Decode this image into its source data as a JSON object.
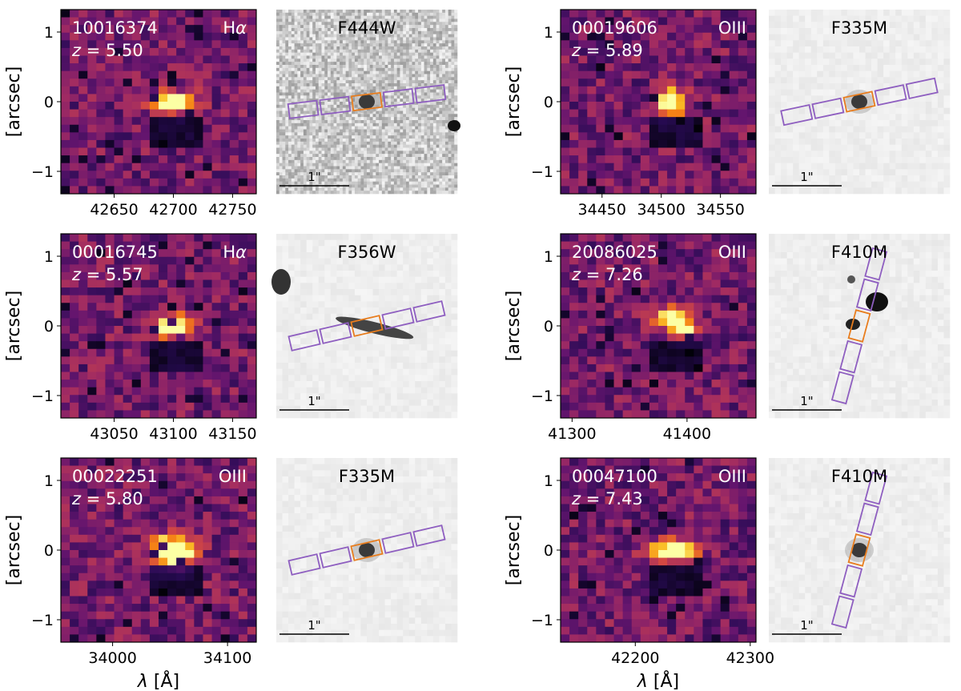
{
  "figure": {
    "ylabel": "[arcsec]",
    "xlabel_symbol": "λ",
    "xlabel_unit": " [Å]",
    "scale_label": "1\"",
    "yticks": [
      1,
      0,
      -1
    ],
    "ytick_labels": [
      "1",
      "0",
      "−1"
    ]
  },
  "panels": [
    {
      "id": "10016374",
      "line": "Hα",
      "line_base": "H",
      "line_greek": "α",
      "z": "5.50",
      "filter": "F444W",
      "xticks": [
        42650,
        42700,
        42750
      ],
      "xlim": [
        42605,
        42770
      ],
      "slit_angle_deg": -7,
      "emission": "compact-elongated"
    },
    {
      "id": "00019606",
      "line": "OIII",
      "line_base": "OIII",
      "line_greek": "",
      "z": "5.89",
      "filter": "F335M",
      "xticks": [
        34450,
        34500,
        34550
      ],
      "xlim": [
        34415,
        34580
      ],
      "slit_angle_deg": -12,
      "emission": "compact-bright"
    },
    {
      "id": "00016745",
      "line": "Hα",
      "line_base": "H",
      "line_greek": "α",
      "z": "5.57",
      "filter": "F356W",
      "xticks": [
        43050,
        43100,
        43150
      ],
      "xlim": [
        43005,
        43170
      ],
      "slit_angle_deg": -13,
      "emission": "tilted"
    },
    {
      "id": "20086025",
      "line": "OIII",
      "line_base": "OIII",
      "line_greek": "",
      "z": "7.26",
      "filter": "F410M",
      "xticks": [
        41300,
        41400
      ],
      "xlim": [
        41290,
        41460
      ],
      "slit_angle_deg": -75,
      "emission": "two-component"
    },
    {
      "id": "00022251",
      "line": "OIII",
      "line_base": "OIII",
      "line_greek": "",
      "z": "5.80",
      "filter": "F335M",
      "xticks": [
        34000,
        34100
      ],
      "xlim": [
        33955,
        34125
      ],
      "slit_angle_deg": -13,
      "emission": "very-bright"
    },
    {
      "id": "00047100",
      "line": "OIII",
      "line_base": "OIII",
      "line_greek": "",
      "z": "7.43",
      "filter": "F410M",
      "xticks": [
        42200,
        42300
      ],
      "xlim": [
        42135,
        42305
      ],
      "slit_angle_deg": -75,
      "emission": "elongated"
    }
  ],
  "colors": {
    "slit_open": "#8e5ec0",
    "slit_target": "#e87d1e",
    "frame": "#000000"
  }
}
